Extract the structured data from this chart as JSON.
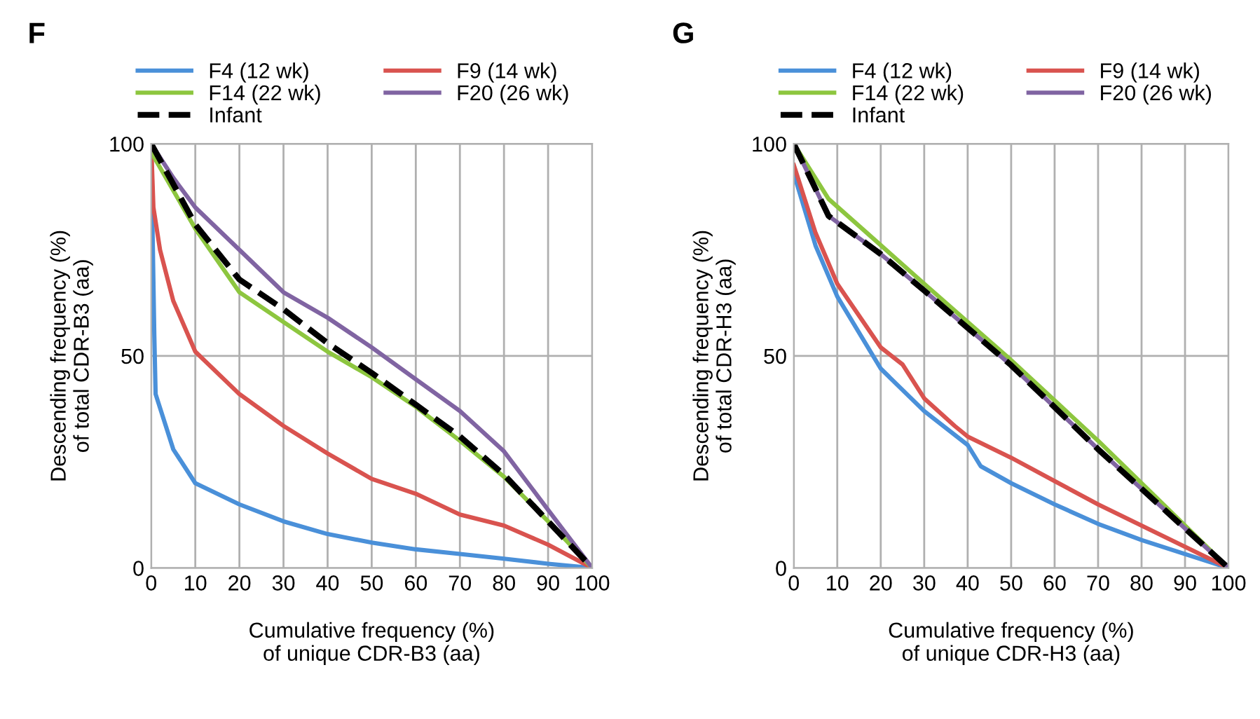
{
  "chart_data": [
    {
      "type": "line",
      "title": "F",
      "xlabel": "Cumulative frequency (%)\nof unique CDR-B3 (aa)",
      "ylabel": "Descending frequency (%)\nof total CDR-B3 (aa)",
      "xlim": [
        0,
        100
      ],
      "ylim": [
        0,
        100
      ],
      "xticks": [
        0,
        10,
        20,
        30,
        40,
        50,
        60,
        70,
        80,
        90,
        100
      ],
      "yticks": [
        0,
        50,
        100
      ],
      "grid": true,
      "legend": "top",
      "series": [
        {
          "name": "F4 (12 wk)",
          "color": "#4a90d9",
          "x": [
            0,
            0.3,
            0.7,
            1,
            5,
            10,
            20,
            30,
            40,
            50,
            60,
            70,
            80,
            90,
            100
          ],
          "values": [
            100,
            80,
            55,
            41,
            28,
            20,
            15,
            11,
            8,
            6,
            4.4,
            3.3,
            2.2,
            1,
            0
          ]
        },
        {
          "name": "F9 (14 wk)",
          "color": "#d9534f",
          "x": [
            0,
            0.5,
            2,
            5,
            10,
            20,
            30,
            40,
            50,
            60,
            70,
            80,
            90,
            100
          ],
          "values": [
            100,
            85,
            75,
            63,
            51,
            41,
            33.5,
            27,
            21,
            17.5,
            12.6,
            10,
            5.5,
            0
          ]
        },
        {
          "name": "F14 (22 wk)",
          "color": "#8dc63f",
          "x": [
            0,
            10,
            20,
            30,
            40,
            50,
            60,
            70,
            80,
            90,
            100
          ],
          "values": [
            98,
            80,
            65,
            58,
            51,
            45,
            38,
            30,
            21.5,
            11,
            0
          ]
        },
        {
          "name": "F20 (26 wk)",
          "color": "#8064a2",
          "x": [
            0,
            5,
            10,
            20,
            30,
            40,
            50,
            60,
            70,
            80,
            90,
            100
          ],
          "values": [
            100,
            92,
            85,
            75,
            65,
            59,
            52,
            44.5,
            37,
            27.5,
            13.7,
            0
          ]
        },
        {
          "name": "Infant",
          "color": "#000000",
          "line_style": "dashed",
          "x": [
            0,
            10,
            20,
            30,
            40,
            50,
            60,
            70,
            80,
            90,
            100
          ],
          "values": [
            100,
            81,
            68,
            61,
            53,
            46,
            38.5,
            31,
            22,
            11,
            0
          ]
        }
      ]
    },
    {
      "type": "line",
      "title": "G",
      "xlabel": "Cumulative frequency (%)\nof unique CDR-H3 (aa)",
      "ylabel": "Descending frequency (%)\nof total CDR-H3 (aa)",
      "xlim": [
        0,
        100
      ],
      "ylim": [
        0,
        100
      ],
      "xticks": [
        0,
        10,
        20,
        30,
        40,
        50,
        60,
        70,
        80,
        90,
        100
      ],
      "yticks": [
        0,
        50,
        100
      ],
      "grid": true,
      "legend": "top",
      "series": [
        {
          "name": "F4 (12 wk)",
          "color": "#4a90d9",
          "x": [
            0,
            5,
            10,
            20,
            30,
            40,
            43,
            50,
            60,
            70,
            80,
            90,
            100
          ],
          "values": [
            93,
            76,
            64,
            47,
            37,
            29,
            24,
            20,
            15,
            10.4,
            6.6,
            3.3,
            0
          ]
        },
        {
          "name": "F9 (14 wk)",
          "color": "#d9534f",
          "x": [
            0,
            5,
            10,
            20,
            25,
            30,
            37,
            40,
            50,
            60,
            70,
            80,
            90,
            100
          ],
          "values": [
            95,
            79,
            67,
            52,
            48,
            40,
            33.5,
            31,
            26,
            20.5,
            15,
            10,
            5,
            0
          ]
        },
        {
          "name": "F14 (22 wk)",
          "color": "#8dc63f",
          "x": [
            0,
            8,
            30,
            50,
            70,
            100
          ],
          "values": [
            100,
            87,
            67,
            49,
            30,
            0
          ]
        },
        {
          "name": "F20 (26 wk)",
          "color": "#8064a2",
          "x": [
            0,
            8,
            20,
            30,
            50,
            70,
            100
          ],
          "values": [
            100,
            83,
            74,
            65.4,
            47.8,
            28,
            0
          ]
        },
        {
          "name": "Infant",
          "color": "#000000",
          "line_style": "dashed",
          "x": [
            0,
            8,
            20,
            30,
            50,
            70,
            100
          ],
          "values": [
            100,
            83,
            74,
            65.4,
            47.8,
            28,
            0
          ]
        }
      ]
    }
  ]
}
